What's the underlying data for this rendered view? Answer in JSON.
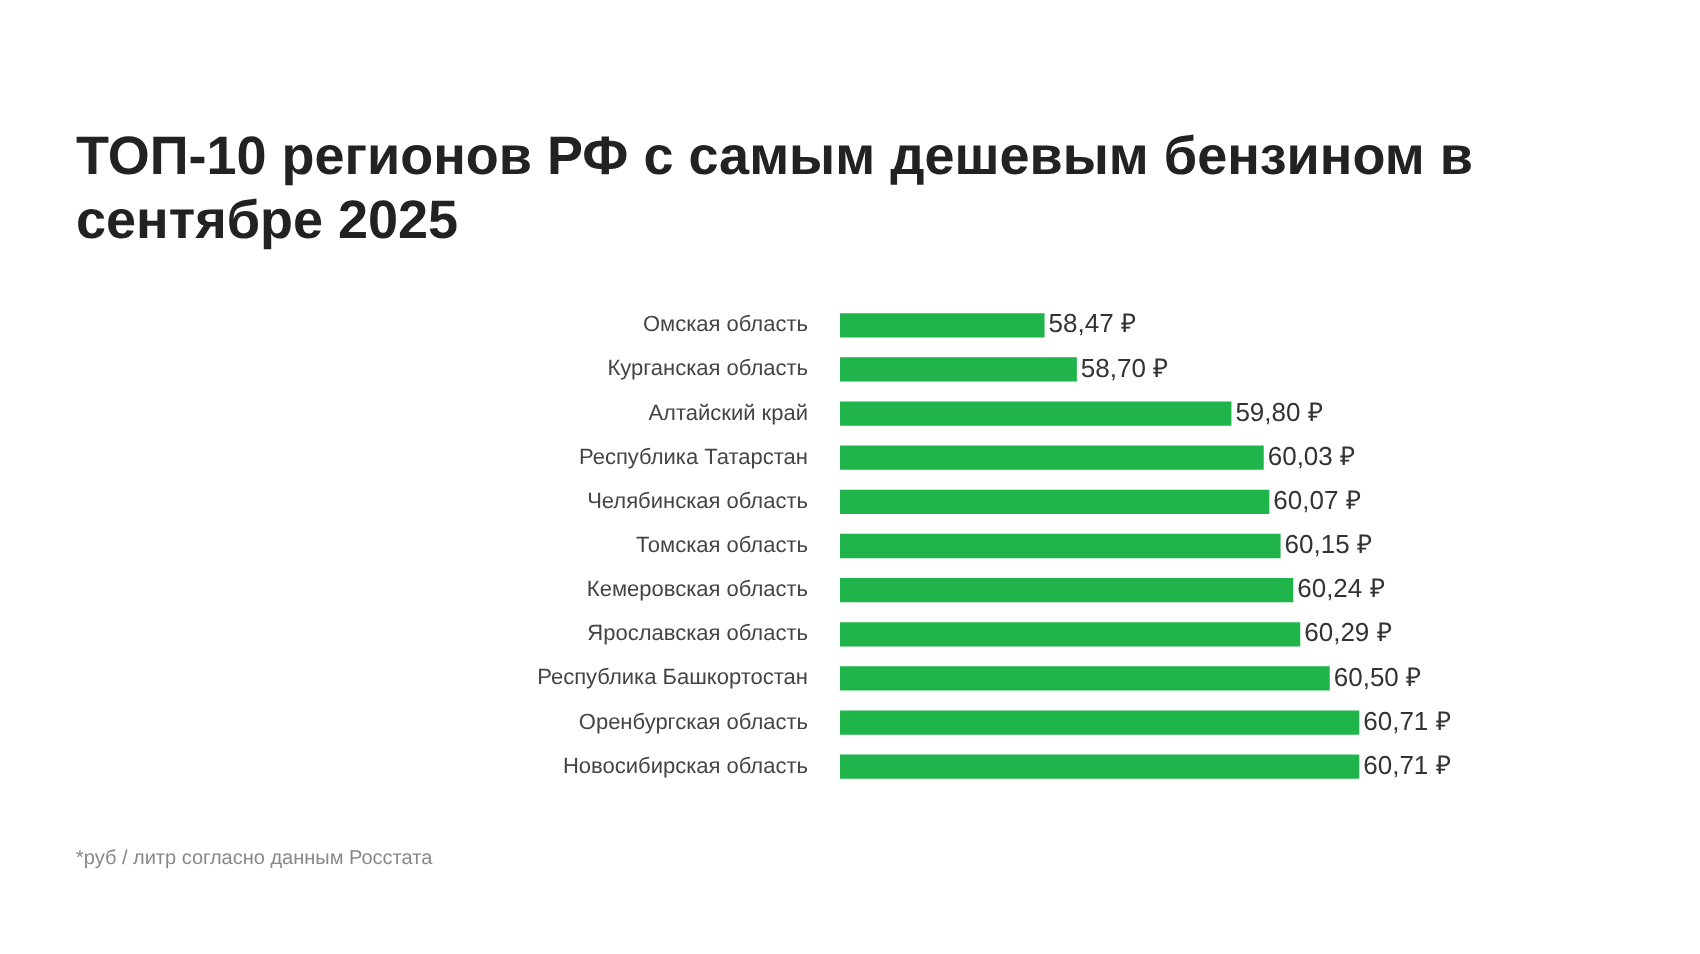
{
  "chart_data": {
    "type": "bar",
    "orientation": "horizontal",
    "title": "ТОП-10 регионов РФ с самым дешевым бензином в сентябре 2025",
    "categories": [
      "Омская область",
      "Курганская область",
      "Алтайский край",
      "Республика Татарстан",
      "Челябинская область",
      "Томская область",
      "Кемеровская область",
      "Ярославская область",
      "Республика Башкортостан",
      "Оренбургская область",
      "Новосибирская область"
    ],
    "values": [
      58.47,
      58.7,
      59.8,
      60.03,
      60.07,
      60.15,
      60.24,
      60.29,
      60.5,
      60.71,
      60.71
    ],
    "value_labels": [
      "58,47 ₽",
      "58,70 ₽",
      "59,80 ₽",
      "60,03 ₽",
      "60,07 ₽",
      "60,15 ₽",
      "60,24 ₽",
      "60,29 ₽",
      "60,50 ₽",
      "60,71 ₽",
      "60,71 ₽"
    ],
    "color": "#1fb54b",
    "tick_labels": "y",
    "annotations": [
      "*руб / литр согласно данным Росстата"
    ]
  }
}
